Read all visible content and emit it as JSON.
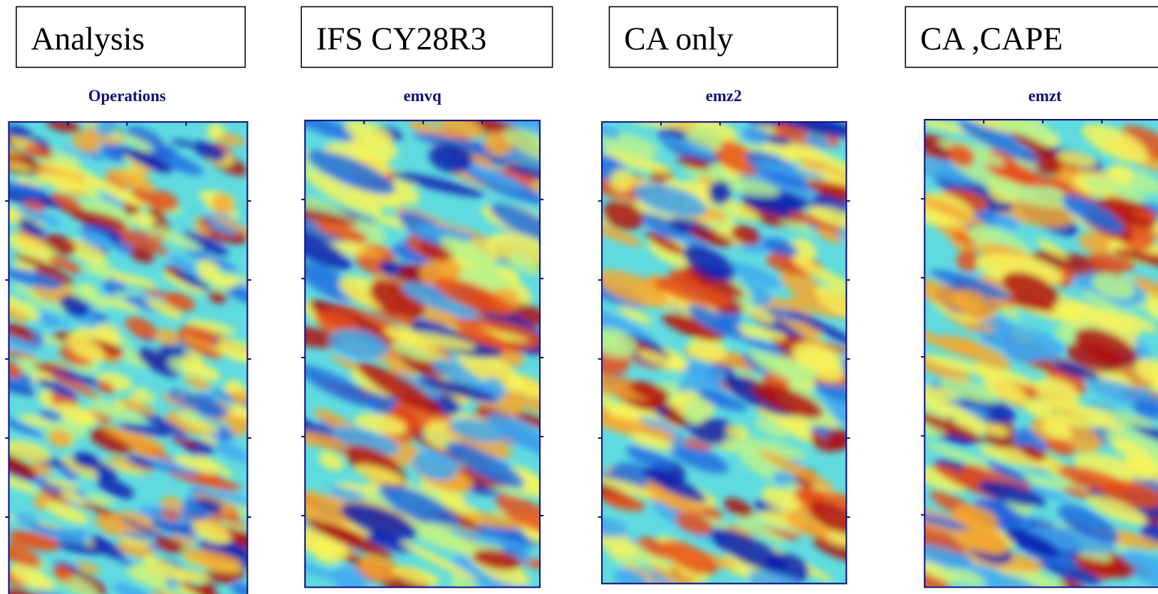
{
  "panels": [
    {
      "label": "Analysis",
      "subtitle": "Operations"
    },
    {
      "label": "IFS CY28R3",
      "subtitle": "emvq"
    },
    {
      "label": "CA only",
      "subtitle": "emz2"
    },
    {
      "label": "CA ,CAPE",
      "subtitle": "emzt"
    }
  ]
}
